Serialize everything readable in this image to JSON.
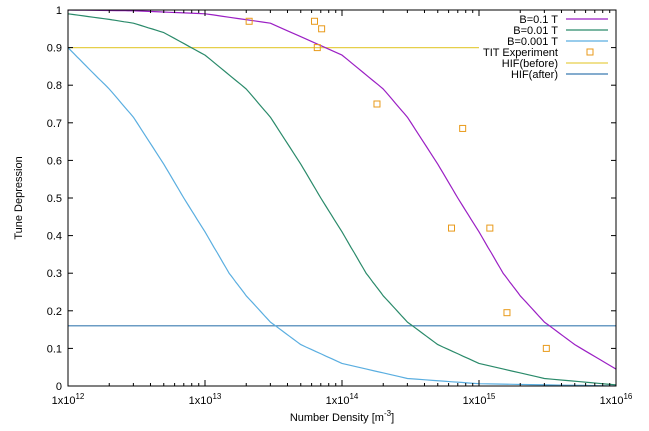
{
  "chart_data": {
    "type": "line",
    "title": "",
    "xlabel": "Number Density",
    "xlabel_unit": "[m",
    "xlabel_unit_exp": "-3",
    "xlabel_unit_close": "]",
    "ylabel": "Tune Depression",
    "xscale": "log",
    "xlim": [
      1000000000000.0,
      1e+16
    ],
    "ylim": [
      0,
      1
    ],
    "x_ticks": [
      {
        "value": 1000000000000.0,
        "base": "1x10",
        "exp": "12"
      },
      {
        "value": 10000000000000.0,
        "base": "1x10",
        "exp": "13"
      },
      {
        "value": 100000000000000.0,
        "base": "1x10",
        "exp": "14"
      },
      {
        "value": 1000000000000000.0,
        "base": "1x10",
        "exp": "15"
      },
      {
        "value": 1e+16,
        "base": "1x10",
        "exp": "16"
      }
    ],
    "y_ticks": [
      {
        "value": 0,
        "label": "0"
      },
      {
        "value": 0.1,
        "label": "0.1"
      },
      {
        "value": 0.2,
        "label": "0.2"
      },
      {
        "value": 0.3,
        "label": "0.3"
      },
      {
        "value": 0.4,
        "label": "0.4"
      },
      {
        "value": 0.5,
        "label": "0.5"
      },
      {
        "value": 0.6,
        "label": "0.6"
      },
      {
        "value": 0.7,
        "label": "0.7"
      },
      {
        "value": 0.8,
        "label": "0.8"
      },
      {
        "value": 0.9,
        "label": "0.9"
      },
      {
        "value": 1,
        "label": "1"
      }
    ],
    "grid": false,
    "legend_position": "top-right",
    "series": [
      {
        "name": "B=0.1 T",
        "kind": "line",
        "color": "#9b1fc4",
        "x": [
          1000000000000.0,
          3000000000000.0,
          10000000000000.0,
          30000000000000.0,
          100000000000000.0,
          200000000000000.0,
          300000000000000.0,
          500000000000000.0,
          700000000000000.0,
          1000000000000000.0,
          1500000000000000.0,
          2000000000000000.0,
          3000000000000000.0,
          5000000000000000.0,
          1e+16
        ],
        "y": [
          1.0,
          0.998,
          0.99,
          0.965,
          0.88,
          0.79,
          0.715,
          0.59,
          0.5,
          0.41,
          0.3,
          0.24,
          0.17,
          0.11,
          0.045
        ]
      },
      {
        "name": "B=0.01 T",
        "kind": "line",
        "color": "#2a8a6a",
        "x": [
          1000000000000.0,
          2000000000000.0,
          3000000000000.0,
          5000000000000.0,
          10000000000000.0,
          20000000000000.0,
          30000000000000.0,
          50000000000000.0,
          70000000000000.0,
          100000000000000.0,
          150000000000000.0,
          200000000000000.0,
          300000000000000.0,
          500000000000000.0,
          1000000000000000.0,
          3000000000000000.0,
          1e+16
        ],
        "y": [
          0.99,
          0.975,
          0.965,
          0.94,
          0.88,
          0.79,
          0.715,
          0.59,
          0.5,
          0.41,
          0.3,
          0.24,
          0.17,
          0.11,
          0.06,
          0.02,
          0.003
        ]
      },
      {
        "name": "B=0.001 T",
        "kind": "line",
        "color": "#5aaee0",
        "x": [
          1000000000000.0,
          1500000000000.0,
          2000000000000.0,
          3000000000000.0,
          5000000000000.0,
          7000000000000.0,
          10000000000000.0,
          15000000000000.0,
          20000000000000.0,
          30000000000000.0,
          50000000000000.0,
          100000000000000.0,
          300000000000000.0,
          1000000000000000.0,
          1e+16
        ],
        "y": [
          0.9,
          0.835,
          0.79,
          0.715,
          0.59,
          0.5,
          0.41,
          0.3,
          0.24,
          0.17,
          0.11,
          0.06,
          0.02,
          0.006,
          0.0
        ]
      },
      {
        "name": "TIT Experiment",
        "kind": "points",
        "color": "#e89a1a",
        "x": [
          21000000000000.0,
          63000000000000.0,
          71000000000000.0,
          66000000000000.0,
          180000000000000.0,
          760000000000000.0,
          630000000000000.0,
          1200000000000000.0,
          1600000000000000.0,
          3100000000000000.0
        ],
        "y": [
          0.97,
          0.97,
          0.95,
          0.9,
          0.75,
          0.685,
          0.42,
          0.42,
          0.195,
          0.1
        ]
      },
      {
        "name": "HIF(before)",
        "kind": "hline",
        "color": "#e6cf4a",
        "x": [
          1000000000000.0,
          1000000000000000.0
        ],
        "y": [
          0.9,
          0.9
        ]
      },
      {
        "name": "HIF(after)",
        "kind": "hline",
        "color": "#3a7bb0",
        "x": [
          1000000000000.0,
          1e+16
        ],
        "y": [
          0.16,
          0.16
        ]
      }
    ]
  }
}
